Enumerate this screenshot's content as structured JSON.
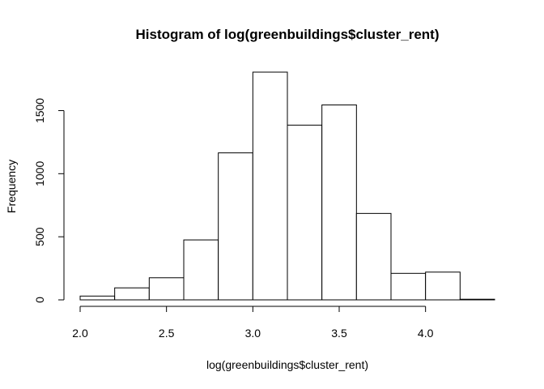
{
  "chart_data": {
    "type": "bar",
    "title": "Histogram of log(greenbuildings$cluster_rent)",
    "xlabel": "log(greenbuildings$cluster_rent)",
    "ylabel": "Frequency",
    "bins": [
      {
        "start": 2.0,
        "end": 2.2,
        "count": 30
      },
      {
        "start": 2.2,
        "end": 2.4,
        "count": 95
      },
      {
        "start": 2.4,
        "end": 2.6,
        "count": 175
      },
      {
        "start": 2.6,
        "end": 2.8,
        "count": 475
      },
      {
        "start": 2.8,
        "end": 3.0,
        "count": 1165
      },
      {
        "start": 3.0,
        "end": 3.2,
        "count": 1805
      },
      {
        "start": 3.2,
        "end": 3.4,
        "count": 1385
      },
      {
        "start": 3.4,
        "end": 3.6,
        "count": 1545
      },
      {
        "start": 3.6,
        "end": 3.8,
        "count": 685
      },
      {
        "start": 3.8,
        "end": 4.0,
        "count": 210
      },
      {
        "start": 4.0,
        "end": 4.2,
        "count": 220
      },
      {
        "start": 4.2,
        "end": 4.4,
        "count": 5
      }
    ],
    "xticks": [
      2.0,
      2.5,
      3.0,
      3.5,
      4.0
    ],
    "xtick_labels": [
      "2.0",
      "2.5",
      "3.0",
      "3.5",
      "4.0"
    ],
    "yticks": [
      0,
      500,
      1000,
      1500
    ],
    "ytick_labels": [
      "0",
      "500",
      "1000",
      "1500"
    ],
    "xlim": [
      2.0,
      4.4
    ],
    "ylim": [
      0,
      1805
    ],
    "grid": false,
    "bar_fill": "#ffffff",
    "bar_stroke": "#000000"
  }
}
